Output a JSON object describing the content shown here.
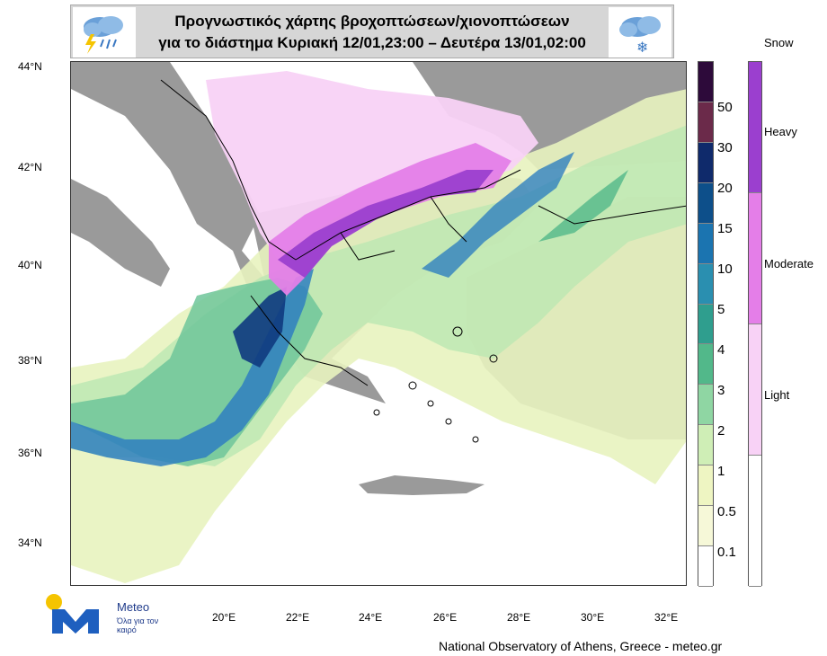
{
  "header": {
    "title_line1": "Προγνωστικός χάρτης βροχοπτώσεων/χιονοπτώσεων",
    "title_line2": "για το διάστημα  Κυριακή 12/01,23:00 – Δευτέρα 13/01,02:00"
  },
  "map": {
    "lat_labels": [
      "44°N",
      "42°N",
      "40°N",
      "38°N",
      "36°N",
      "34°N"
    ],
    "lon_labels": [
      "20°E",
      "22°E",
      "24°E",
      "26°E",
      "28°E",
      "30°E",
      "32°E"
    ]
  },
  "rain_legend": {
    "labels": [
      "50",
      "30",
      "20",
      "15",
      "10",
      "5",
      "4",
      "3",
      "2",
      "1",
      "0.5",
      "0.1"
    ],
    "colors": [
      "#2d0a3a",
      "#6b2a4a",
      "#0f2a6b",
      "#0d4f8a",
      "#1b74b0",
      "#2a8fb0",
      "#2f9e8e",
      "#52b88a",
      "#8fd6a3",
      "#cfeeb6",
      "#eef5c2",
      "#f6f8d8",
      "#ffffff"
    ]
  },
  "snow_legend": {
    "title": "Snow",
    "labels": [
      "Heavy",
      "Moderate",
      "Light"
    ],
    "colors": [
      "#9b3fcf",
      "#e47ee8",
      "#f8d2f6",
      "#ffffff"
    ]
  },
  "logo": {
    "name": "Meteo",
    "subtitle": "Όλα για τον καιρό"
  },
  "footer": {
    "credit": "National Observatory of Athens, Greece - meteo.gr"
  },
  "colors": {
    "land": "#9a9a9a",
    "sea": "#ffffff",
    "border": "#000000",
    "header_bg": "#d6d6d6"
  }
}
